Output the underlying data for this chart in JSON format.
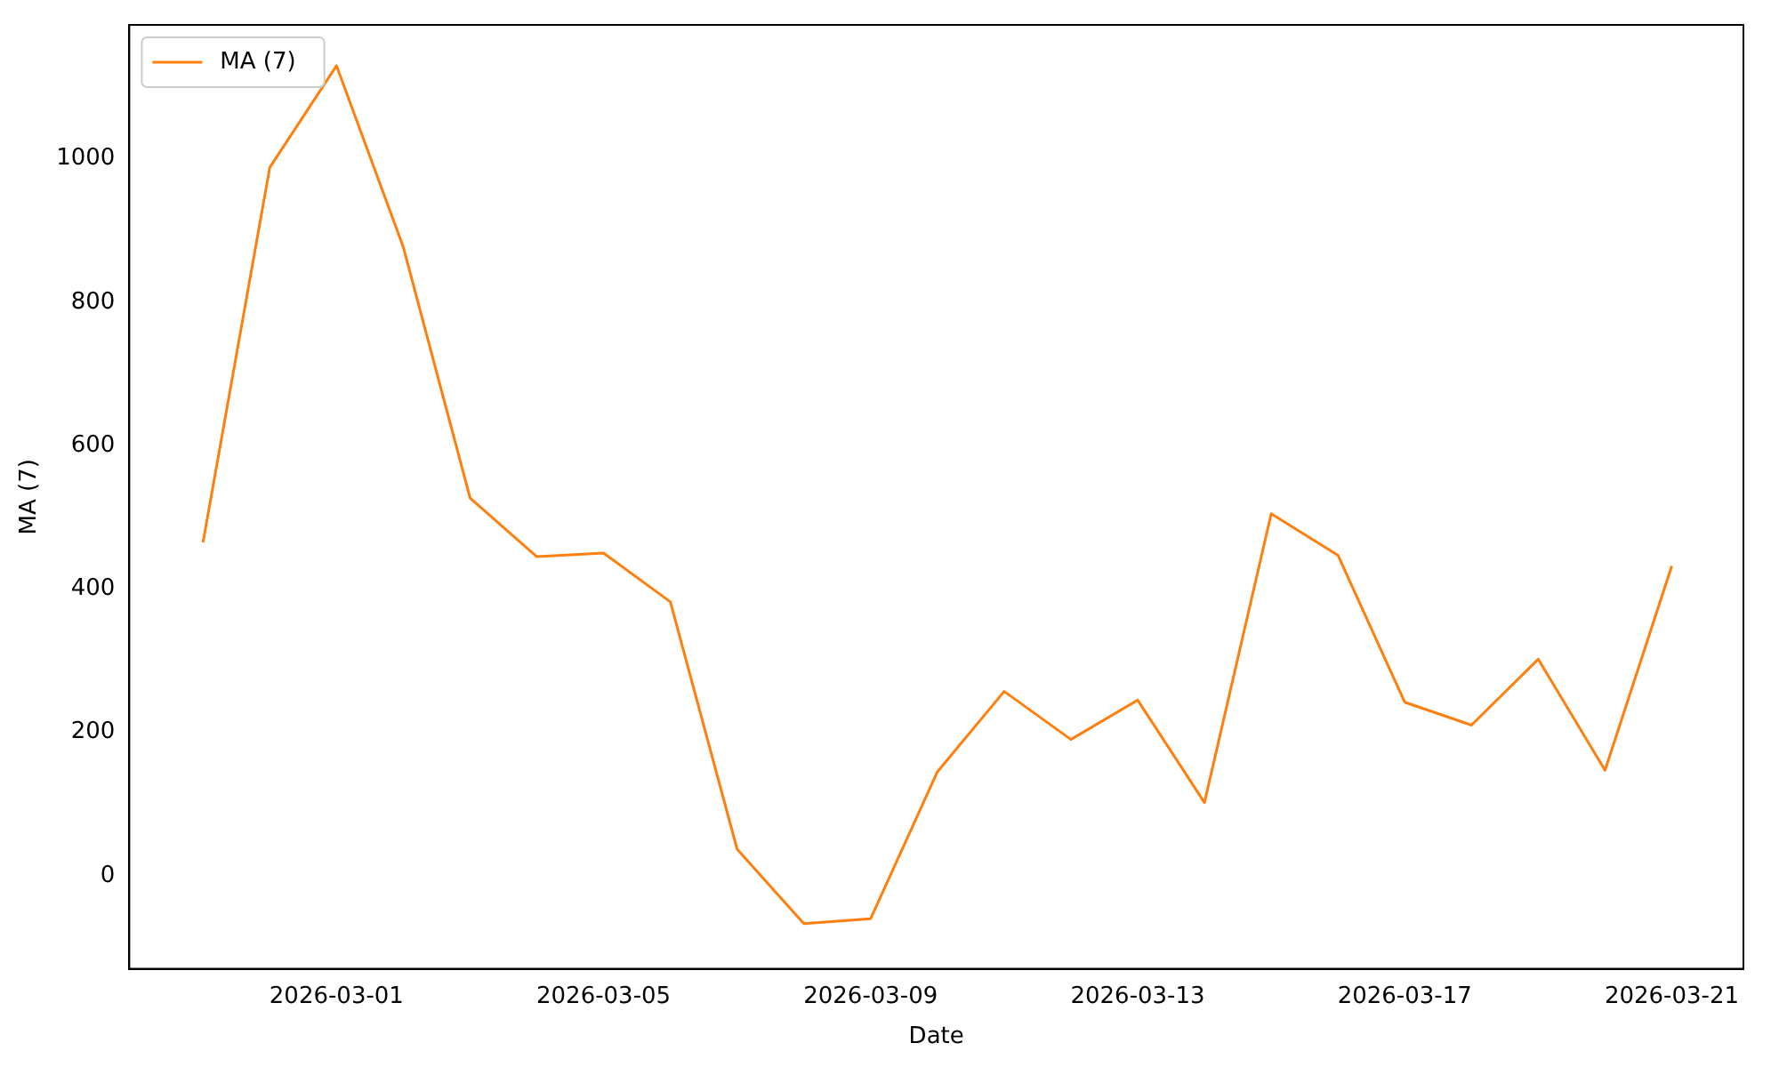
{
  "chart_data": {
    "type": "line",
    "xlabel": "Date",
    "ylabel": "MA (7)",
    "x": [
      "2026-02-27",
      "2026-02-28",
      "2026-03-01",
      "2026-03-02",
      "2026-03-03",
      "2026-03-04",
      "2026-03-05",
      "2026-03-06",
      "2026-03-07",
      "2026-03-08",
      "2026-03-09",
      "2026-03-10",
      "2026-03-11",
      "2026-03-12",
      "2026-03-13",
      "2026-03-14",
      "2026-03-15",
      "2026-03-16",
      "2026-03-17",
      "2026-03-18",
      "2026-03-19",
      "2026-03-20",
      "2026-03-21"
    ],
    "series": [
      {
        "name": "MA (7)",
        "color": "#ff7f0e",
        "values": [
          465,
          988,
          1130,
          877,
          527,
          445,
          450,
          382,
          37,
          -67,
          -60,
          145,
          257,
          190,
          245,
          102,
          505,
          447,
          242,
          210,
          302,
          147,
          432
        ]
      }
    ],
    "xlim": [
      "2026-02-25T21:30",
      "2026-03-22T01:45"
    ],
    "xticks": [
      "2026-03-01",
      "2026-03-05",
      "2026-03-09",
      "2026-03-13",
      "2026-03-17",
      "2026-03-21"
    ],
    "ylim": [
      -130,
      1187
    ],
    "yticks": [
      0,
      200,
      400,
      600,
      800,
      1000
    ],
    "grid": false,
    "legend": "top left",
    "marker": "none",
    "line_style": "solid"
  }
}
